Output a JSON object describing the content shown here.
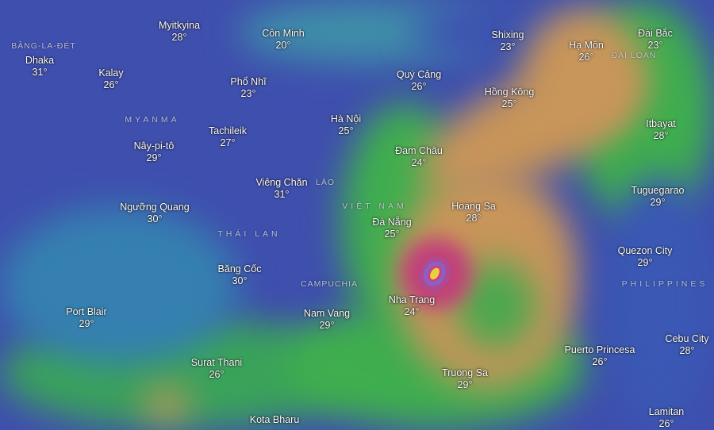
{
  "map": {
    "colors": {
      "land_cool": "#4b48b0",
      "sea_teal": "#2f8aa8",
      "warm_band": "#c8955a",
      "green": "#3fae4e",
      "storm_core": "#c0407a",
      "storm_eye": "#e8d040"
    },
    "storm_icon": "typhoon-eye-icon",
    "countries": [
      {
        "id": "bangladesh",
        "label": "BĂNG-LA-ĐÉT"
      },
      {
        "id": "myanmar",
        "label": "MYANMA"
      },
      {
        "id": "thailand",
        "label": "THÁI LAN"
      },
      {
        "id": "laos",
        "label": "LÀO"
      },
      {
        "id": "vietnam",
        "label": "VIỆT NAM"
      },
      {
        "id": "cambodia",
        "label": "CAMPUCHIA"
      },
      {
        "id": "taiwan",
        "label": "ĐÀI LOAN"
      },
      {
        "id": "philippines",
        "label": "PHILIPPINES"
      }
    ],
    "cities": [
      {
        "name": "Myitkyina",
        "temp": "28°"
      },
      {
        "name": "Côn Minh",
        "temp": "20°"
      },
      {
        "name": "Dhaka",
        "temp": "31°"
      },
      {
        "name": "Kalay",
        "temp": "26°"
      },
      {
        "name": "Phổ Nhĩ",
        "temp": "23°"
      },
      {
        "name": "Quý Cảng",
        "temp": "26°"
      },
      {
        "name": "Shixing",
        "temp": "23°"
      },
      {
        "name": "Hạ Môn",
        "temp": "26°"
      },
      {
        "name": "Đài Bắc",
        "temp": "23°"
      },
      {
        "name": "Hồng Kông",
        "temp": "25°"
      },
      {
        "name": "Hà Nội",
        "temp": "25°"
      },
      {
        "name": "Tachileik",
        "temp": "27°"
      },
      {
        "name": "Nây-pi-tô",
        "temp": "29°"
      },
      {
        "name": "Itbayat",
        "temp": "28°"
      },
      {
        "name": "Đam Châu",
        "temp": "24°"
      },
      {
        "name": "Viêng Chăn",
        "temp": "31°"
      },
      {
        "name": "Tuguegarao",
        "temp": "29°"
      },
      {
        "name": "Ngưỡng Quang",
        "temp": "30°"
      },
      {
        "name": "Hoàng Sa",
        "temp": "28°"
      },
      {
        "name": "Đà Nẵng",
        "temp": "25°"
      },
      {
        "name": "Quezon City",
        "temp": "29°"
      },
      {
        "name": "Băng Cốc",
        "temp": "30°"
      },
      {
        "name": "Nha Trang",
        "temp": "24°"
      },
      {
        "name": "Port Blair",
        "temp": "29°"
      },
      {
        "name": "Nam Vang",
        "temp": "29°"
      },
      {
        "name": "Cebu City",
        "temp": "28°"
      },
      {
        "name": "Puerto Princesa",
        "temp": "26°"
      },
      {
        "name": "Surat Thani",
        "temp": "26°"
      },
      {
        "name": "Truong Sa",
        "temp": "29°"
      },
      {
        "name": "Lamitan",
        "temp": "26°"
      },
      {
        "name": "Kota Bharu"
      }
    ]
  }
}
